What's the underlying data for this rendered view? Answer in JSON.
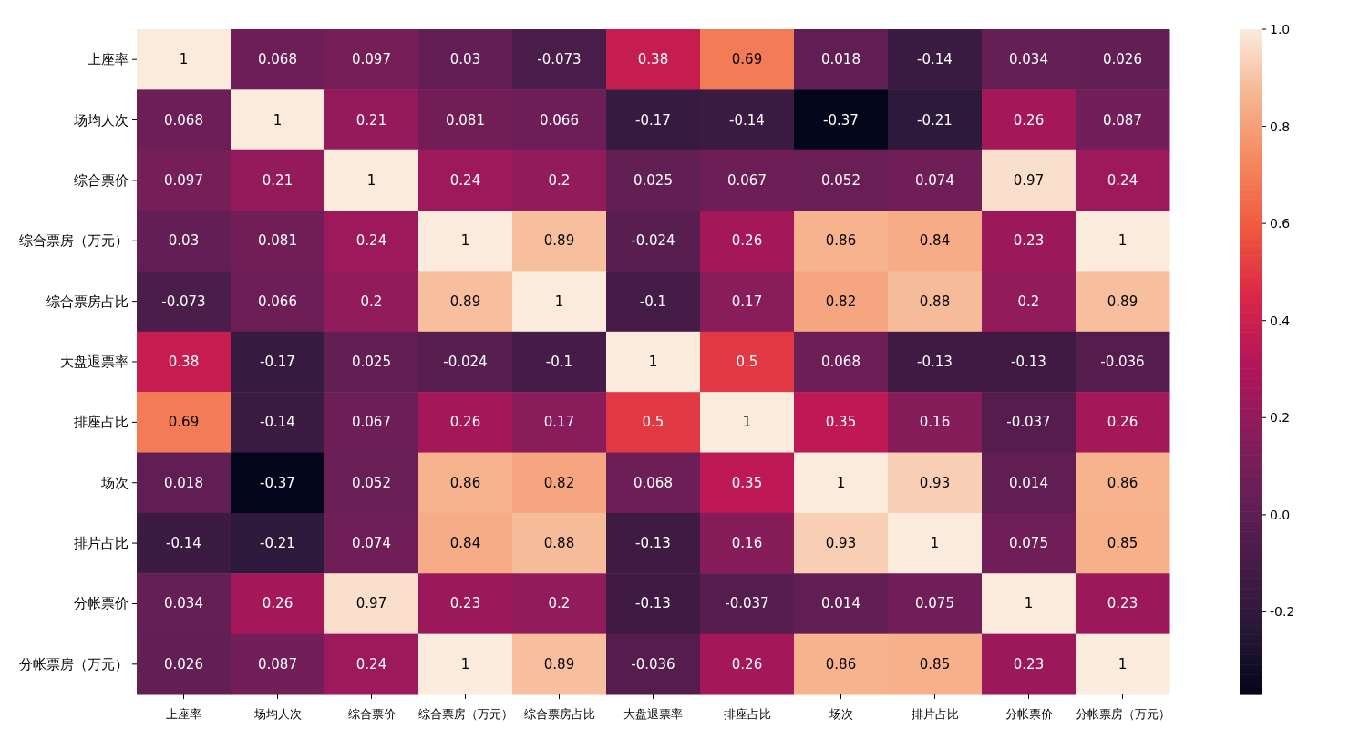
{
  "chart_data": {
    "type": "heatmap",
    "categories": [
      "上座率",
      "场均人次",
      "综合票价",
      "综合票房（万元）",
      "综合票房占比",
      "大盘退票率",
      "排座占比",
      "场次",
      "排片占比",
      "分帐票价",
      "分帐票房（万元）"
    ],
    "y_categories": [
      "上座率",
      "场均人次",
      "综合票价",
      "综合票房（万元）",
      "综合票房占比",
      "大盘退票率",
      "排座占比",
      "场次",
      "排片占比",
      "分帐票价",
      "分帐票房（万元）"
    ],
    "cells": [
      [
        1,
        0.068,
        0.097,
        0.03,
        -0.073,
        0.38,
        0.69,
        0.018,
        -0.14,
        0.034,
        0.026
      ],
      [
        0.068,
        1,
        0.21,
        0.081,
        0.066,
        -0.17,
        -0.14,
        -0.37,
        -0.21,
        0.26,
        0.087
      ],
      [
        0.097,
        0.21,
        1,
        0.24,
        0.2,
        0.025,
        0.067,
        0.052,
        0.074,
        0.97,
        0.24
      ],
      [
        0.03,
        0.081,
        0.24,
        1,
        0.89,
        -0.024,
        0.26,
        0.86,
        0.84,
        0.23,
        1
      ],
      [
        -0.073,
        0.066,
        0.2,
        0.89,
        1,
        -0.1,
        0.17,
        0.82,
        0.88,
        0.2,
        0.89
      ],
      [
        0.38,
        -0.17,
        0.025,
        -0.024,
        -0.1,
        1,
        0.5,
        0.068,
        -0.13,
        -0.13,
        -0.036
      ],
      [
        0.69,
        -0.14,
        0.067,
        0.26,
        0.17,
        0.5,
        1,
        0.35,
        0.16,
        -0.037,
        0.26
      ],
      [
        0.018,
        -0.37,
        0.052,
        0.86,
        0.82,
        0.068,
        0.35,
        1,
        0.93,
        0.014,
        0.86
      ],
      [
        -0.14,
        -0.21,
        0.074,
        0.84,
        0.88,
        -0.13,
        0.16,
        0.93,
        1,
        0.075,
        0.85
      ],
      [
        0.034,
        0.26,
        0.97,
        0.23,
        0.2,
        -0.13,
        -0.037,
        0.014,
        0.075,
        1,
        0.23
      ],
      [
        0.026,
        0.087,
        0.24,
        1,
        0.89,
        -0.036,
        0.26,
        0.86,
        0.85,
        0.23,
        1
      ]
    ],
    "data_labels": true,
    "clim": [
      -0.37,
      1.0
    ],
    "cticks": [
      -0.2,
      {
        "value": 0,
        "label": "0.0"
      },
      0.2,
      0.4,
      0.6,
      0.8,
      {
        "value": 1,
        "label": "1.0"
      }
    ]
  }
}
